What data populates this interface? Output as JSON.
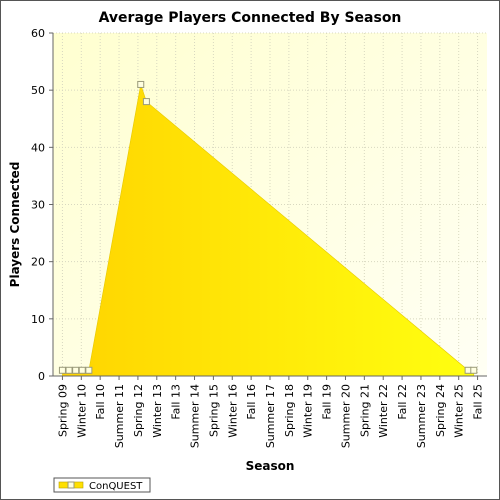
{
  "chart_data": {
    "type": "area",
    "title": "Average Players Connected By Season",
    "xlabel": "Season",
    "ylabel": "Players Connected",
    "ylim": [
      0,
      60
    ],
    "y_ticks": [
      0,
      10,
      20,
      30,
      40,
      50,
      60
    ],
    "grid": true,
    "legend_position": "bottom-left",
    "x_tick_labels": [
      "Spring 09",
      "Winter 10",
      "Fall 10",
      "Summer 11",
      "Spring 12",
      "Winter 13",
      "Fall 13",
      "Summer 14",
      "Spring 15",
      "Winter 16",
      "Fall 16",
      "Summer 17",
      "Spring 18",
      "Winter 19",
      "Fall 19",
      "Summer 20",
      "Spring 21",
      "Winter 22",
      "Fall 22",
      "Summer 23",
      "Spring 24",
      "Winter 25",
      "Fall 25"
    ],
    "x_range": [
      0,
      22
    ],
    "series": [
      {
        "name": "ConQUEST",
        "color": "#ffe000",
        "points": [
          {
            "x": 0.0,
            "y": 1
          },
          {
            "x": 0.35,
            "y": 1
          },
          {
            "x": 0.7,
            "y": 1
          },
          {
            "x": 1.05,
            "y": 1
          },
          {
            "x": 1.4,
            "y": 1
          },
          {
            "x": 4.15,
            "y": 51
          },
          {
            "x": 4.45,
            "y": 48
          },
          {
            "x": 21.5,
            "y": 1
          },
          {
            "x": 21.8,
            "y": 1
          }
        ]
      }
    ]
  }
}
